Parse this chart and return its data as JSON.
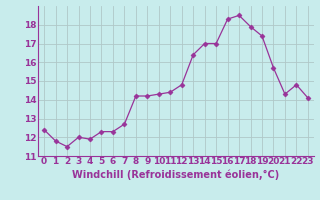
{
  "x": [
    0,
    1,
    2,
    3,
    4,
    5,
    6,
    7,
    8,
    9,
    10,
    11,
    12,
    13,
    14,
    15,
    16,
    17,
    18,
    19,
    20,
    21,
    22,
    23
  ],
  "y": [
    12.4,
    11.8,
    11.5,
    12.0,
    11.9,
    12.3,
    12.3,
    12.7,
    14.2,
    14.2,
    14.3,
    14.4,
    14.8,
    16.4,
    17.0,
    17.0,
    18.3,
    18.5,
    17.9,
    17.4,
    15.7,
    14.3,
    14.8,
    14.1
  ],
  "line_color": "#993399",
  "marker": "D",
  "marker_size": 2.5,
  "background_color": "#c8ecec",
  "grid_color": "#b0c8c8",
  "xlabel": "Windchill (Refroidissement éolien,°C)",
  "ylabel": "",
  "xlim": [
    -0.5,
    23.5
  ],
  "ylim": [
    11,
    19
  ],
  "yticks": [
    11,
    12,
    13,
    14,
    15,
    16,
    17,
    18
  ],
  "xticks": [
    0,
    1,
    2,
    3,
    4,
    5,
    6,
    7,
    8,
    9,
    10,
    11,
    12,
    13,
    14,
    15,
    16,
    17,
    18,
    19,
    20,
    21,
    22,
    23
  ],
  "tick_fontsize": 6.5,
  "xlabel_fontsize": 7,
  "tick_color": "#993399",
  "label_color": "#993399"
}
